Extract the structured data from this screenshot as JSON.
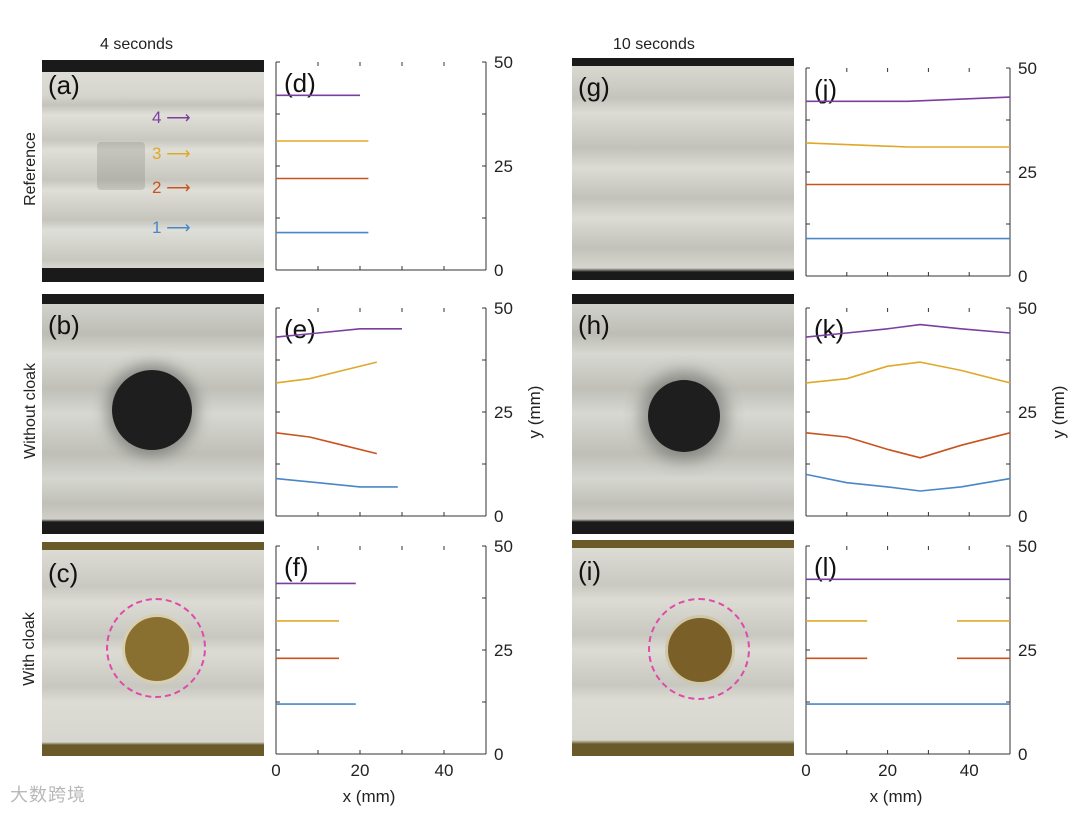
{
  "columns": {
    "left": "4 seconds",
    "right": "10 seconds"
  },
  "rows": [
    "Reference",
    "Without cloak",
    "With cloak"
  ],
  "photos": [
    {
      "letter": "(a)"
    },
    {
      "letter": "(b)"
    },
    {
      "letter": "(c)"
    },
    {
      "letter": "(g)"
    },
    {
      "letter": "(h)"
    },
    {
      "letter": "(i)"
    }
  ],
  "arrows": [
    {
      "label": "4",
      "color": "#7b3fa0"
    },
    {
      "label": "3",
      "color": "#e0a828"
    },
    {
      "label": "2",
      "color": "#c8531e"
    },
    {
      "label": "1",
      "color": "#4a86c8"
    }
  ],
  "axis": {
    "xlabel": "x (mm)",
    "ylabel": "y (mm)",
    "xticks": [
      0,
      20,
      40
    ],
    "yticks": [
      0,
      25,
      50
    ]
  },
  "colors": {
    "line4": "#7b3fa0",
    "line3": "#e0a828",
    "line2": "#c8531e",
    "line1": "#4a86c8",
    "cloak_ring": "#e04aa8"
  },
  "watermark": "大数跨境",
  "chart_data": [
    {
      "type": "line",
      "panel": "(d)",
      "xlim": [
        0,
        50
      ],
      "ylim": [
        0,
        50
      ],
      "series": [
        {
          "line": 4,
          "x": [
            0,
            10,
            20
          ],
          "y": [
            42,
            42,
            42
          ]
        },
        {
          "line": 3,
          "x": [
            0,
            10,
            22
          ],
          "y": [
            31,
            31,
            31
          ]
        },
        {
          "line": 2,
          "x": [
            0,
            10,
            22
          ],
          "y": [
            22,
            22,
            22
          ]
        },
        {
          "line": 1,
          "x": [
            0,
            10,
            22
          ],
          "y": [
            9,
            9,
            9
          ]
        }
      ]
    },
    {
      "type": "line",
      "panel": "(e)",
      "xlim": [
        0,
        50
      ],
      "ylim": [
        0,
        50
      ],
      "series": [
        {
          "line": 4,
          "x": [
            0,
            10,
            20,
            30
          ],
          "y": [
            43,
            44,
            45,
            45
          ]
        },
        {
          "line": 3,
          "x": [
            0,
            8,
            16,
            24
          ],
          "y": [
            32,
            33,
            35,
            37
          ]
        },
        {
          "line": 2,
          "x": [
            0,
            8,
            16,
            24
          ],
          "y": [
            20,
            19,
            17,
            15
          ]
        },
        {
          "line": 1,
          "x": [
            0,
            10,
            20,
            29
          ],
          "y": [
            9,
            8,
            7,
            7
          ]
        }
      ]
    },
    {
      "type": "line",
      "panel": "(f)",
      "xlim": [
        0,
        50
      ],
      "ylim": [
        0,
        50
      ],
      "series": [
        {
          "line": 4,
          "x": [
            0,
            10,
            19
          ],
          "y": [
            41,
            41,
            41
          ]
        },
        {
          "line": 3,
          "x": [
            0,
            8,
            15
          ],
          "y": [
            32,
            32,
            32
          ]
        },
        {
          "line": 2,
          "x": [
            0,
            8,
            15
          ],
          "y": [
            23,
            23,
            23
          ]
        },
        {
          "line": 1,
          "x": [
            0,
            10,
            19
          ],
          "y": [
            12,
            12,
            12
          ]
        }
      ]
    },
    {
      "type": "line",
      "panel": "(j)",
      "xlim": [
        0,
        50
      ],
      "ylim": [
        0,
        50
      ],
      "series": [
        {
          "line": 4,
          "x": [
            0,
            25,
            50
          ],
          "y": [
            42,
            42,
            43
          ]
        },
        {
          "line": 3,
          "x": [
            0,
            25,
            50
          ],
          "y": [
            32,
            31,
            31
          ]
        },
        {
          "line": 2,
          "x": [
            0,
            25,
            50
          ],
          "y": [
            22,
            22,
            22
          ]
        },
        {
          "line": 1,
          "x": [
            0,
            25,
            50
          ],
          "y": [
            9,
            9,
            9
          ]
        }
      ]
    },
    {
      "type": "line",
      "panel": "(k)",
      "xlim": [
        0,
        50
      ],
      "ylim": [
        0,
        50
      ],
      "series": [
        {
          "line": 4,
          "x": [
            0,
            10,
            20,
            28,
            38,
            50
          ],
          "y": [
            43,
            44,
            45,
            46,
            45,
            44
          ]
        },
        {
          "line": 3,
          "x": [
            0,
            10,
            20,
            28,
            38,
            50
          ],
          "y": [
            32,
            33,
            36,
            37,
            35,
            32
          ]
        },
        {
          "line": 2,
          "x": [
            0,
            10,
            20,
            28,
            38,
            50
          ],
          "y": [
            20,
            19,
            16,
            14,
            17,
            20
          ]
        },
        {
          "line": 1,
          "x": [
            0,
            10,
            20,
            28,
            38,
            50
          ],
          "y": [
            10,
            8,
            7,
            6,
            7,
            9
          ]
        }
      ]
    },
    {
      "type": "line",
      "panel": "(l)",
      "xlim": [
        0,
        50
      ],
      "ylim": [
        0,
        50
      ],
      "series": [
        {
          "line": 4,
          "x": [
            0,
            25,
            50
          ],
          "y": [
            42,
            42,
            42
          ]
        },
        {
          "line": 3,
          "x": [
            0,
            15
          ],
          "y": [
            32,
            32
          ]
        },
        {
          "line": 3,
          "x": [
            37,
            50
          ],
          "y": [
            32,
            32
          ]
        },
        {
          "line": 2,
          "x": [
            0,
            15
          ],
          "y": [
            23,
            23
          ]
        },
        {
          "line": 2,
          "x": [
            37,
            50
          ],
          "y": [
            23,
            23
          ]
        },
        {
          "line": 1,
          "x": [
            0,
            25,
            50
          ],
          "y": [
            12,
            12,
            12
          ]
        }
      ]
    }
  ]
}
